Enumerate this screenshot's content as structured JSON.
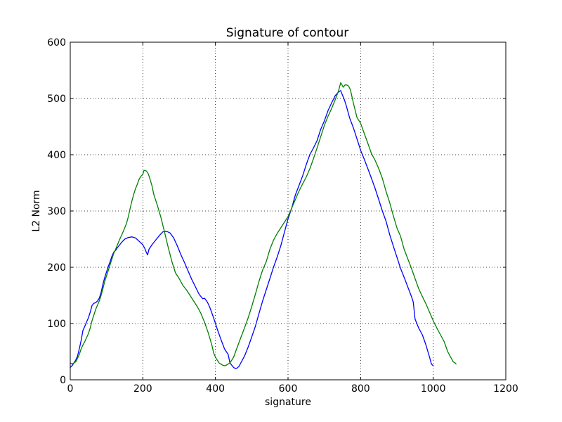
{
  "chart_data": {
    "type": "line",
    "title": "Signature of contour",
    "xlabel": "signature",
    "ylabel": "L2 Norm",
    "xlim": [
      0,
      1200
    ],
    "ylim": [
      0,
      600
    ],
    "x_ticks": [
      0,
      200,
      400,
      600,
      800,
      1000,
      1200
    ],
    "y_ticks": [
      0,
      100,
      200,
      300,
      400,
      500,
      600
    ],
    "grid": true,
    "grid_style": "dotted",
    "legend": "none",
    "series": [
      {
        "color": "#0000ff",
        "points": [
          [
            0,
            22
          ],
          [
            5,
            25
          ],
          [
            10,
            30
          ],
          [
            15,
            35
          ],
          [
            20,
            42
          ],
          [
            25,
            55
          ],
          [
            30,
            70
          ],
          [
            35,
            88
          ],
          [
            40,
            95
          ],
          [
            45,
            103
          ],
          [
            50,
            110
          ],
          [
            55,
            120
          ],
          [
            60,
            132
          ],
          [
            65,
            136
          ],
          [
            70,
            137
          ],
          [
            75,
            140
          ],
          [
            80,
            145
          ],
          [
            85,
            155
          ],
          [
            90,
            170
          ],
          [
            95,
            182
          ],
          [
            100,
            192
          ],
          [
            105,
            202
          ],
          [
            110,
            210
          ],
          [
            115,
            220
          ],
          [
            120,
            227
          ],
          [
            125,
            230
          ],
          [
            130,
            235
          ],
          [
            140,
            243
          ],
          [
            150,
            250
          ],
          [
            160,
            253
          ],
          [
            170,
            254
          ],
          [
            180,
            252
          ],
          [
            190,
            246
          ],
          [
            200,
            240
          ],
          [
            205,
            234
          ],
          [
            210,
            226
          ],
          [
            213,
            222
          ],
          [
            217,
            232
          ],
          [
            225,
            240
          ],
          [
            235,
            248
          ],
          [
            245,
            256
          ],
          [
            255,
            263
          ],
          [
            265,
            264
          ],
          [
            275,
            261
          ],
          [
            285,
            252
          ],
          [
            295,
            238
          ],
          [
            305,
            222
          ],
          [
            315,
            208
          ],
          [
            325,
            193
          ],
          [
            335,
            178
          ],
          [
            345,
            165
          ],
          [
            355,
            152
          ],
          [
            365,
            144
          ],
          [
            370,
            145
          ],
          [
            378,
            138
          ],
          [
            385,
            128
          ],
          [
            395,
            110
          ],
          [
            405,
            90
          ],
          [
            415,
            72
          ],
          [
            425,
            55
          ],
          [
            435,
            45
          ],
          [
            440,
            30
          ],
          [
            445,
            26
          ],
          [
            450,
            22
          ],
          [
            455,
            20
          ],
          [
            460,
            21
          ],
          [
            465,
            24
          ],
          [
            470,
            30
          ],
          [
            480,
            42
          ],
          [
            490,
            58
          ],
          [
            500,
            76
          ],
          [
            510,
            95
          ],
          [
            520,
            118
          ],
          [
            530,
            140
          ],
          [
            540,
            160
          ],
          [
            550,
            180
          ],
          [
            560,
            200
          ],
          [
            570,
            218
          ],
          [
            580,
            238
          ],
          [
            590,
            262
          ],
          [
            600,
            286
          ],
          [
            610,
            305
          ],
          [
            620,
            328
          ],
          [
            630,
            345
          ],
          [
            640,
            362
          ],
          [
            650,
            382
          ],
          [
            660,
            400
          ],
          [
            670,
            412
          ],
          [
            680,
            425
          ],
          [
            690,
            445
          ],
          [
            700,
            460
          ],
          [
            710,
            478
          ],
          [
            720,
            492
          ],
          [
            730,
            505
          ],
          [
            740,
            512
          ],
          [
            745,
            514
          ],
          [
            750,
            506
          ],
          [
            755,
            498
          ],
          [
            760,
            488
          ],
          [
            770,
            465
          ],
          [
            780,
            448
          ],
          [
            790,
            428
          ],
          [
            800,
            408
          ],
          [
            810,
            392
          ],
          [
            820,
            375
          ],
          [
            830,
            358
          ],
          [
            840,
            340
          ],
          [
            850,
            320
          ],
          [
            860,
            300
          ],
          [
            870,
            282
          ],
          [
            880,
            258
          ],
          [
            890,
            238
          ],
          [
            900,
            218
          ],
          [
            910,
            198
          ],
          [
            920,
            182
          ],
          [
            930,
            165
          ],
          [
            940,
            148
          ],
          [
            945,
            138
          ],
          [
            950,
            108
          ],
          [
            955,
            100
          ],
          [
            960,
            92
          ],
          [
            970,
            80
          ],
          [
            980,
            62
          ],
          [
            990,
            40
          ],
          [
            995,
            28
          ],
          [
            1000,
            25
          ]
        ]
      },
      {
        "color": "#008000",
        "points": [
          [
            0,
            30
          ],
          [
            5,
            28
          ],
          [
            10,
            30
          ],
          [
            15,
            32
          ],
          [
            20,
            38
          ],
          [
            25,
            45
          ],
          [
            30,
            55
          ],
          [
            35,
            62
          ],
          [
            40,
            68
          ],
          [
            45,
            75
          ],
          [
            50,
            82
          ],
          [
            55,
            92
          ],
          [
            60,
            105
          ],
          [
            65,
            115
          ],
          [
            70,
            125
          ],
          [
            75,
            133
          ],
          [
            80,
            140
          ],
          [
            85,
            150
          ],
          [
            90,
            162
          ],
          [
            95,
            175
          ],
          [
            100,
            185
          ],
          [
            105,
            195
          ],
          [
            110,
            205
          ],
          [
            115,
            215
          ],
          [
            120,
            225
          ],
          [
            125,
            232
          ],
          [
            130,
            240
          ],
          [
            135,
            248
          ],
          [
            140,
            255
          ],
          [
            145,
            262
          ],
          [
            150,
            270
          ],
          [
            155,
            278
          ],
          [
            160,
            290
          ],
          [
            165,
            305
          ],
          [
            170,
            318
          ],
          [
            175,
            330
          ],
          [
            180,
            340
          ],
          [
            185,
            348
          ],
          [
            190,
            357
          ],
          [
            195,
            362
          ],
          [
            200,
            365
          ],
          [
            203,
            372
          ],
          [
            206,
            372
          ],
          [
            210,
            371
          ],
          [
            215,
            366
          ],
          [
            220,
            356
          ],
          [
            225,
            345
          ],
          [
            230,
            330
          ],
          [
            240,
            310
          ],
          [
            250,
            288
          ],
          [
            260,
            262
          ],
          [
            270,
            235
          ],
          [
            280,
            210
          ],
          [
            290,
            190
          ],
          [
            300,
            180
          ],
          [
            310,
            168
          ],
          [
            320,
            160
          ],
          [
            330,
            150
          ],
          [
            340,
            140
          ],
          [
            350,
            130
          ],
          [
            360,
            118
          ],
          [
            370,
            102
          ],
          [
            380,
            84
          ],
          [
            390,
            62
          ],
          [
            395,
            48
          ],
          [
            400,
            40
          ],
          [
            405,
            35
          ],
          [
            410,
            30
          ],
          [
            415,
            28
          ],
          [
            420,
            26
          ],
          [
            425,
            25
          ],
          [
            430,
            26
          ],
          [
            435,
            28
          ],
          [
            440,
            30
          ],
          [
            445,
            35
          ],
          [
            450,
            40
          ],
          [
            460,
            58
          ],
          [
            470,
            75
          ],
          [
            480,
            92
          ],
          [
            490,
            110
          ],
          [
            500,
            130
          ],
          [
            510,
            152
          ],
          [
            520,
            175
          ],
          [
            530,
            195
          ],
          [
            540,
            210
          ],
          [
            550,
            232
          ],
          [
            560,
            248
          ],
          [
            570,
            260
          ],
          [
            580,
            270
          ],
          [
            590,
            280
          ],
          [
            600,
            290
          ],
          [
            610,
            305
          ],
          [
            620,
            320
          ],
          [
            630,
            335
          ],
          [
            640,
            348
          ],
          [
            650,
            360
          ],
          [
            660,
            375
          ],
          [
            670,
            393
          ],
          [
            680,
            412
          ],
          [
            690,
            432
          ],
          [
            700,
            452
          ],
          [
            710,
            468
          ],
          [
            720,
            482
          ],
          [
            730,
            498
          ],
          [
            740,
            515
          ],
          [
            745,
            528
          ],
          [
            748,
            525
          ],
          [
            752,
            520
          ],
          [
            757,
            524
          ],
          [
            762,
            524
          ],
          [
            767,
            522
          ],
          [
            772,
            515
          ],
          [
            780,
            492
          ],
          [
            790,
            466
          ],
          [
            800,
            456
          ],
          [
            810,
            438
          ],
          [
            820,
            420
          ],
          [
            830,
            402
          ],
          [
            840,
            390
          ],
          [
            850,
            375
          ],
          [
            860,
            358
          ],
          [
            870,
            335
          ],
          [
            880,
            315
          ],
          [
            890,
            292
          ],
          [
            900,
            270
          ],
          [
            910,
            255
          ],
          [
            920,
            232
          ],
          [
            930,
            215
          ],
          [
            940,
            198
          ],
          [
            950,
            180
          ],
          [
            960,
            162
          ],
          [
            970,
            148
          ],
          [
            980,
            135
          ],
          [
            990,
            120
          ],
          [
            1000,
            105
          ],
          [
            1010,
            92
          ],
          [
            1020,
            80
          ],
          [
            1030,
            68
          ],
          [
            1040,
            50
          ],
          [
            1050,
            38
          ],
          [
            1055,
            32
          ],
          [
            1060,
            30
          ],
          [
            1063,
            28
          ]
        ]
      }
    ]
  }
}
